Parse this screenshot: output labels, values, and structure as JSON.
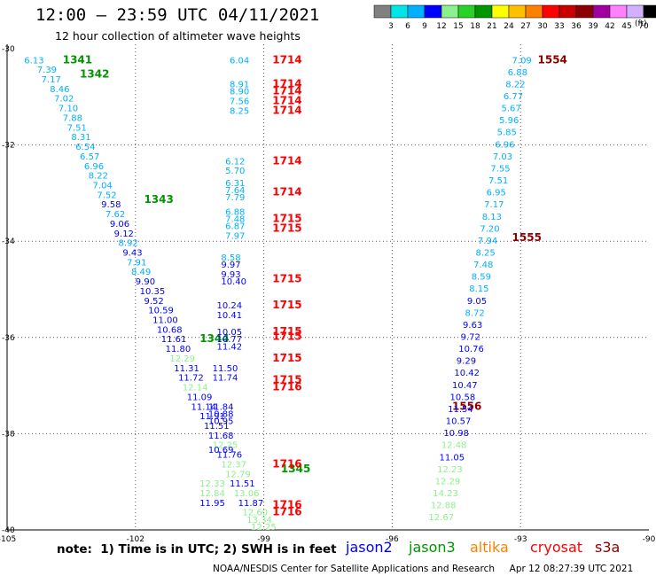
{
  "header": {
    "title": "12:00 – 23:59 UTC 04/11/2021",
    "subtitle": "12 hour collection of altimeter wave heights"
  },
  "colorbar": {
    "unit": "(ft)",
    "colors": [
      "#808080",
      "#00e5e5",
      "#00b0ff",
      "#0000ff",
      "#8cf08c",
      "#28d228",
      "#009600",
      "#ffff00",
      "#ffc000",
      "#ff8000",
      "#ff0000",
      "#c80000",
      "#8b0000",
      "#a000a0",
      "#ff80ff",
      "#d0b0ff",
      "#000000"
    ],
    "labels": [
      "3",
      "6",
      "9",
      "12",
      "15",
      "18",
      "21",
      "24",
      "27",
      "30",
      "33",
      "36",
      "39",
      "42",
      "45",
      "70"
    ]
  },
  "footer": {
    "note": "note:  1) Time is in UTC; 2) SWH is in feet",
    "satellites": [
      {
        "name": "jason2",
        "color": "#0000ff"
      },
      {
        "name": "jason3",
        "color": "#009600"
      },
      {
        "name": "altika",
        "color": "#ff8000"
      },
      {
        "name": "cryosat",
        "color": "#ff0000"
      },
      {
        "name": "s3a",
        "color": "#8b0000"
      }
    ],
    "credit": "NOAA/NESDIS Center for Satellite Applications and Research     Apr 12 08:27:39 UTC 2021"
  },
  "chart_data": {
    "type": "scatter",
    "xlim": [
      -105,
      -90
    ],
    "ylim": [
      -40,
      -30
    ],
    "xticks": [
      -105,
      -102,
      -99,
      -96,
      -93,
      -90
    ],
    "yticks": [
      -30,
      -32,
      -34,
      -36,
      -38,
      -40
    ],
    "xtick_labels": [
      "-105",
      "-102",
      "-99",
      "-96",
      "-93",
      "-90"
    ],
    "ytick_labels": [
      "-30",
      "-32",
      "-34",
      "-36",
      "-38",
      "-40"
    ],
    "grid": "dotted",
    "series": [
      {
        "name": "jason3",
        "labels": [
          {
            "x": -103.7,
            "y": -30.3,
            "v": "1341",
            "time": true
          },
          {
            "x": -103.3,
            "y": -30.6,
            "v": "1342",
            "time": true
          },
          {
            "x": -101.8,
            "y": -33.2,
            "v": "1343",
            "time": true
          },
          {
            "x": -100.5,
            "y": -36.1,
            "v": "1344",
            "time": true
          },
          {
            "x": -98.6,
            "y": -38.8,
            "v": "1345",
            "time": true
          },
          {
            "x": -104.6,
            "y": -30.3,
            "v": "6.13"
          },
          {
            "x": -104.3,
            "y": -30.5,
            "v": "7.39"
          },
          {
            "x": -104.2,
            "y": -30.7,
            "v": "7.17"
          },
          {
            "x": -104.0,
            "y": -30.9,
            "v": "8.46"
          },
          {
            "x": -103.9,
            "y": -31.1,
            "v": "7.02"
          },
          {
            "x": -103.8,
            "y": -31.3,
            "v": "7.10"
          },
          {
            "x": -103.7,
            "y": -31.5,
            "v": "7.88"
          },
          {
            "x": -103.6,
            "y": -31.7,
            "v": "7.51"
          },
          {
            "x": -103.5,
            "y": -31.9,
            "v": "8.31"
          },
          {
            "x": -103.4,
            "y": -32.1,
            "v": "6.54"
          },
          {
            "x": -103.3,
            "y": -32.3,
            "v": "6.57"
          },
          {
            "x": -103.2,
            "y": -32.5,
            "v": "6.96"
          },
          {
            "x": -103.1,
            "y": -32.7,
            "v": "8.22"
          },
          {
            "x": -103.0,
            "y": -32.9,
            "v": "7.04"
          },
          {
            "x": -102.9,
            "y": -33.1,
            "v": "7.52"
          },
          {
            "x": -102.8,
            "y": -33.3,
            "v": "9.58"
          },
          {
            "x": -102.7,
            "y": -33.5,
            "v": "7.62"
          },
          {
            "x": -102.6,
            "y": -33.7,
            "v": "9.06"
          },
          {
            "x": -102.5,
            "y": -33.9,
            "v": "9.12"
          },
          {
            "x": -102.4,
            "y": -34.1,
            "v": "8.92"
          },
          {
            "x": -102.3,
            "y": -34.3,
            "v": "9.43"
          },
          {
            "x": -102.2,
            "y": -34.5,
            "v": "7.91"
          },
          {
            "x": -102.1,
            "y": -34.7,
            "v": "8.49"
          },
          {
            "x": -102.0,
            "y": -34.9,
            "v": "9.90"
          },
          {
            "x": -101.9,
            "y": -35.1,
            "v": "10.35"
          },
          {
            "x": -101.8,
            "y": -35.3,
            "v": "9.52"
          },
          {
            "x": -101.7,
            "y": -35.5,
            "v": "10.59"
          },
          {
            "x": -101.6,
            "y": -35.7,
            "v": "11.00"
          },
          {
            "x": -101.5,
            "y": -35.9,
            "v": "10.68"
          },
          {
            "x": -101.4,
            "y": -36.1,
            "v": "11.61"
          },
          {
            "x": -101.3,
            "y": -36.3,
            "v": "11.80"
          },
          {
            "x": -101.2,
            "y": -36.5,
            "v": "12.29"
          },
          {
            "x": -101.1,
            "y": -36.7,
            "v": "11.31"
          },
          {
            "x": -101.0,
            "y": -36.9,
            "v": "11.72"
          },
          {
            "x": -100.9,
            "y": -37.1,
            "v": "12.14"
          },
          {
            "x": -100.8,
            "y": -37.3,
            "v": "11.09"
          },
          {
            "x": -100.7,
            "y": -37.5,
            "v": "11.14"
          },
          {
            "x": -100.5,
            "y": -37.7,
            "v": "11.91"
          },
          {
            "x": -100.4,
            "y": -37.9,
            "v": "11.51"
          },
          {
            "x": -100.3,
            "y": -38.1,
            "v": "11.68"
          },
          {
            "x": -100.2,
            "y": -38.3,
            "v": "12.25"
          },
          {
            "x": -100.1,
            "y": -38.5,
            "v": "11.76"
          },
          {
            "x": -100.0,
            "y": -38.7,
            "v": "12.37"
          },
          {
            "x": -99.9,
            "y": -38.9,
            "v": "12.79"
          },
          {
            "x": -99.8,
            "y": -39.1,
            "v": "11.51"
          },
          {
            "x": -99.7,
            "y": -39.3,
            "v": "13.06"
          },
          {
            "x": -99.6,
            "y": -39.5,
            "v": "11.87"
          },
          {
            "x": -99.5,
            "y": -39.7,
            "v": "12.60"
          },
          {
            "x": -99.4,
            "y": -39.85,
            "v": "13.34"
          },
          {
            "x": -99.3,
            "y": -40.0,
            "v": "12.25"
          },
          {
            "x": -99.2,
            "y": -40.15,
            "v": "12.25"
          },
          {
            "x": -99.1,
            "y": -40.3,
            "v": "12.68"
          }
        ]
      },
      {
        "name": "cryosat",
        "labels": [
          {
            "x": -98.8,
            "y": -30.3,
            "v": "1714",
            "time": true
          },
          {
            "x": -98.8,
            "y": -30.8,
            "v": "1714",
            "time": true
          },
          {
            "x": -98.8,
            "y": -30.95,
            "v": "1714",
            "time": true
          },
          {
            "x": -98.8,
            "y": -31.15,
            "v": "1714",
            "time": true
          },
          {
            "x": -98.8,
            "y": -31.35,
            "v": "1714",
            "time": true
          },
          {
            "x": -98.8,
            "y": -32.4,
            "v": "1714",
            "time": true
          },
          {
            "x": -98.8,
            "y": -33.05,
            "v": "1714",
            "time": true
          },
          {
            "x": -98.8,
            "y": -33.6,
            "v": "1715",
            "time": true
          },
          {
            "x": -98.8,
            "y": -33.8,
            "v": "1715",
            "time": true
          },
          {
            "x": -98.8,
            "y": -34.85,
            "v": "1715",
            "time": true
          },
          {
            "x": -98.8,
            "y": -35.4,
            "v": "1715",
            "time": true
          },
          {
            "x": -98.8,
            "y": -35.95,
            "v": "1715",
            "time": true
          },
          {
            "x": -98.8,
            "y": -36.05,
            "v": "1715",
            "time": true
          },
          {
            "x": -98.8,
            "y": -36.5,
            "v": "1715",
            "time": true
          },
          {
            "x": -98.8,
            "y": -36.95,
            "v": "1715",
            "time": true
          },
          {
            "x": -98.8,
            "y": -37.1,
            "v": "1716",
            "time": true
          },
          {
            "x": -98.8,
            "y": -38.7,
            "v": "1716",
            "time": true
          },
          {
            "x": -98.8,
            "y": -39.55,
            "v": "1716",
            "time": true
          },
          {
            "x": -98.8,
            "y": -39.7,
            "v": "1716",
            "time": true
          },
          {
            "x": -99.8,
            "y": -30.3,
            "v": "6.04"
          },
          {
            "x": -99.8,
            "y": -30.8,
            "v": "8.91"
          },
          {
            "x": -99.8,
            "y": -30.95,
            "v": "8.90"
          },
          {
            "x": -99.8,
            "y": -31.15,
            "v": "7.56"
          },
          {
            "x": -99.8,
            "y": -31.35,
            "v": "8.25"
          },
          {
            "x": -99.9,
            "y": -32.4,
            "v": "6.12"
          },
          {
            "x": -99.9,
            "y": -32.6,
            "v": "5.70"
          },
          {
            "x": -99.9,
            "y": -32.85,
            "v": "6.31"
          },
          {
            "x": -99.9,
            "y": -33.0,
            "v": "7.64"
          },
          {
            "x": -99.9,
            "y": -33.15,
            "v": "7.79"
          },
          {
            "x": -99.9,
            "y": -33.45,
            "v": "6.88"
          },
          {
            "x": -99.9,
            "y": -33.6,
            "v": "7.48"
          },
          {
            "x": -99.9,
            "y": -33.75,
            "v": "6.87"
          },
          {
            "x": -99.9,
            "y": -33.95,
            "v": "7.97"
          },
          {
            "x": -100.0,
            "y": -34.4,
            "v": "8.58"
          },
          {
            "x": -100.0,
            "y": -34.55,
            "v": "9.97"
          },
          {
            "x": -100.0,
            "y": -34.75,
            "v": "9.93"
          },
          {
            "x": -100.0,
            "y": -34.9,
            "v": "10.40"
          },
          {
            "x": -100.1,
            "y": -35.4,
            "v": "10.24"
          },
          {
            "x": -100.1,
            "y": -35.6,
            "v": "10.41"
          },
          {
            "x": -100.1,
            "y": -35.95,
            "v": "10.05"
          },
          {
            "x": -100.1,
            "y": -36.1,
            "v": "10.77"
          },
          {
            "x": -100.1,
            "y": -36.25,
            "v": "11.42"
          },
          {
            "x": -100.2,
            "y": -36.7,
            "v": "11.50"
          },
          {
            "x": -100.2,
            "y": -36.9,
            "v": "11.74"
          },
          {
            "x": -100.3,
            "y": -37.5,
            "v": "11.84"
          },
          {
            "x": -100.3,
            "y": -37.65,
            "v": "10.88"
          },
          {
            "x": -100.3,
            "y": -37.8,
            "v": "10.95"
          },
          {
            "x": -100.3,
            "y": -38.4,
            "v": "10.69"
          },
          {
            "x": -100.5,
            "y": -39.1,
            "v": "12.33"
          },
          {
            "x": -100.5,
            "y": -39.3,
            "v": "12.84"
          },
          {
            "x": -100.5,
            "y": -39.5,
            "v": "11.95"
          },
          {
            "x": -100.7,
            "y": -40.1,
            "v": "12.54"
          },
          {
            "x": -100.7,
            "y": -40.25,
            "v": "12.89"
          },
          {
            "x": -100.7,
            "y": -40.4,
            "v": "12.86"
          },
          {
            "x": -100.7,
            "y": -40.6,
            "v": "11.97"
          }
        ]
      },
      {
        "name": "s3a",
        "labels": [
          {
            "x": -92.6,
            "y": -30.3,
            "v": "1554",
            "time": true
          },
          {
            "x": -93.2,
            "y": -34.0,
            "v": "1555",
            "time": true
          },
          {
            "x": -94.6,
            "y": -37.5,
            "v": "1556",
            "time": true
          },
          {
            "x": -93.2,
            "y": -30.3,
            "v": "7.09"
          },
          {
            "x": -93.3,
            "y": -30.55,
            "v": "6.88"
          },
          {
            "x": -93.35,
            "y": -30.8,
            "v": "8.22"
          },
          {
            "x": -93.4,
            "y": -31.05,
            "v": "6.77"
          },
          {
            "x": -93.45,
            "y": -31.3,
            "v": "5.67"
          },
          {
            "x": -93.5,
            "y": -31.55,
            "v": "5.96"
          },
          {
            "x": -93.55,
            "y": -31.8,
            "v": "5.85"
          },
          {
            "x": -93.6,
            "y": -32.05,
            "v": "6.96"
          },
          {
            "x": -93.65,
            "y": -32.3,
            "v": "7.03"
          },
          {
            "x": -93.7,
            "y": -32.55,
            "v": "7.55"
          },
          {
            "x": -93.75,
            "y": -32.8,
            "v": "7.51"
          },
          {
            "x": -93.8,
            "y": -33.05,
            "v": "6.95"
          },
          {
            "x": -93.85,
            "y": -33.3,
            "v": "7.17"
          },
          {
            "x": -93.9,
            "y": -33.55,
            "v": "8.13"
          },
          {
            "x": -93.95,
            "y": -33.8,
            "v": "7.20"
          },
          {
            "x": -94.0,
            "y": -34.05,
            "v": "7.94"
          },
          {
            "x": -94.05,
            "y": -34.3,
            "v": "8.25"
          },
          {
            "x": -94.1,
            "y": -34.55,
            "v": "7.48"
          },
          {
            "x": -94.15,
            "y": -34.8,
            "v": "8.59"
          },
          {
            "x": -94.2,
            "y": -35.05,
            "v": "8.15"
          },
          {
            "x": -94.25,
            "y": -35.3,
            "v": "9.05"
          },
          {
            "x": -94.3,
            "y": -35.55,
            "v": "8.72"
          },
          {
            "x": -94.35,
            "y": -35.8,
            "v": "9.63"
          },
          {
            "x": -94.4,
            "y": -36.05,
            "v": "9.72"
          },
          {
            "x": -94.45,
            "y": -36.3,
            "v": "10.76"
          },
          {
            "x": -94.5,
            "y": -36.55,
            "v": "9.29"
          },
          {
            "x": -94.55,
            "y": -36.8,
            "v": "10.42"
          },
          {
            "x": -94.6,
            "y": -37.05,
            "v": "10.47"
          },
          {
            "x": -94.65,
            "y": -37.3,
            "v": "10.58"
          },
          {
            "x": -94.7,
            "y": -37.55,
            "v": "11.54"
          },
          {
            "x": -94.75,
            "y": -37.8,
            "v": "10.57"
          },
          {
            "x": -94.8,
            "y": -38.05,
            "v": "10.98"
          },
          {
            "x": -94.85,
            "y": -38.3,
            "v": "12.48"
          },
          {
            "x": -94.9,
            "y": -38.55,
            "v": "11.05"
          },
          {
            "x": -94.95,
            "y": -38.8,
            "v": "12.23"
          },
          {
            "x": -95.0,
            "y": -39.05,
            "v": "12.29"
          },
          {
            "x": -95.05,
            "y": -39.3,
            "v": "14.23"
          },
          {
            "x": -95.1,
            "y": -39.55,
            "v": "12.88"
          },
          {
            "x": -95.15,
            "y": -39.8,
            "v": "12.67"
          },
          {
            "x": -95.2,
            "y": -40.05,
            "v": "13.37"
          },
          {
            "x": -95.25,
            "y": -40.3,
            "v": "13.34"
          },
          {
            "x": -95.3,
            "y": -40.55,
            "v": "13.17"
          },
          {
            "x": -95.35,
            "y": -40.8,
            "v": "13.35"
          }
        ]
      }
    ]
  }
}
